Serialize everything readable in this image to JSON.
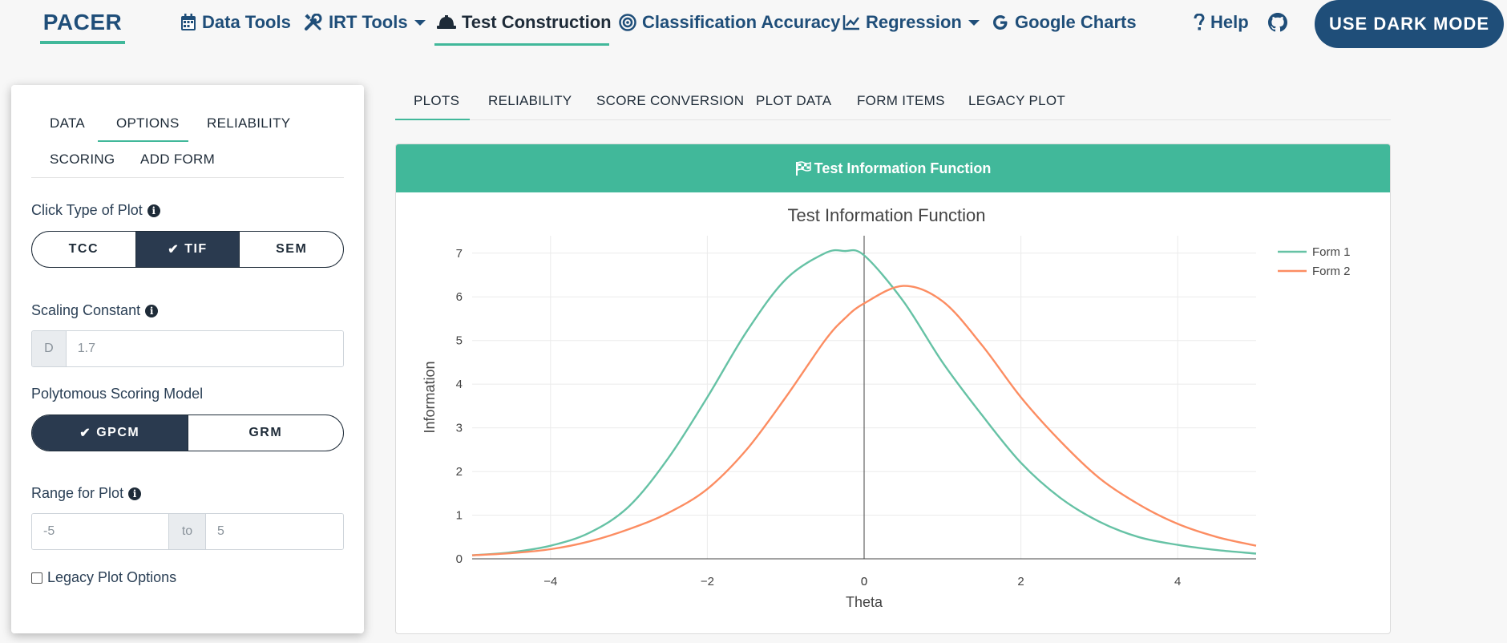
{
  "nav": {
    "brand": "PACER",
    "items": [
      {
        "label": "Data Tools",
        "icon": "calendar-icon"
      },
      {
        "label": "IRT Tools",
        "icon": "tools-icon"
      },
      {
        "label": "Test Construction",
        "icon": "hard-hat-icon"
      },
      {
        "label": "Classification Accuracy",
        "icon": "bullseye-icon"
      },
      {
        "label": "Regression",
        "icon": "line-chart-icon"
      },
      {
        "label": "Google Charts",
        "icon": "google-icon"
      },
      {
        "label": "Help",
        "icon": "question-icon"
      }
    ],
    "github_icon": "github-icon",
    "dark_mode_button": "USE DARK MODE",
    "colors": {
      "brand": "#1f4e79",
      "accent": "#41b89a"
    }
  },
  "sidebar": {
    "tabs": [
      "DATA",
      "OPTIONS",
      "RELIABILITY",
      "SCORING",
      "ADD FORM"
    ],
    "active_tab": "OPTIONS",
    "plot_type": {
      "label": "Click Type of Plot",
      "options": [
        "TCC",
        "TIF",
        "SEM"
      ],
      "selected": "TIF"
    },
    "scaling_constant": {
      "label": "Scaling Constant",
      "addon": "D",
      "value": "1.7"
    },
    "scoring_model": {
      "label": "Polytomous Scoring Model",
      "options": [
        "GPCM",
        "GRM"
      ],
      "selected": "GPCM"
    },
    "range": {
      "label": "Range for Plot",
      "from": "-5",
      "to_label": "to",
      "to": "5"
    },
    "legacy_checkbox": "Legacy Plot Options"
  },
  "main": {
    "tabs": [
      "PLOTS",
      "RELIABILITY",
      "SCORE CONVERSION",
      "PLOT DATA",
      "FORM ITEMS",
      "LEGACY PLOT"
    ],
    "active_tab": "PLOTS",
    "card_title": "Test Information Function"
  },
  "chart_data": {
    "type": "line",
    "title": "Test Information Function",
    "xlabel": "Theta",
    "ylabel": "Information",
    "xlim": [
      -5,
      5
    ],
    "ylim": [
      0,
      7.4
    ],
    "xticks": [
      -4,
      -2,
      0,
      2,
      4
    ],
    "yticks": [
      0,
      1,
      2,
      3,
      4,
      5,
      6,
      7
    ],
    "grid": true,
    "legend_position": "top-right",
    "x": [
      -5,
      -4.5,
      -4,
      -3.5,
      -3,
      -2.5,
      -2,
      -1.5,
      -1,
      -0.5,
      -0.25,
      0,
      0.5,
      1,
      1.5,
      2,
      2.5,
      3,
      3.5,
      4,
      4.5,
      5
    ],
    "series": [
      {
        "name": "Form 1",
        "color": "#66c2a5",
        "values": [
          0.08,
          0.15,
          0.3,
          0.6,
          1.2,
          2.3,
          3.7,
          5.2,
          6.4,
          7.0,
          7.05,
          6.95,
          5.9,
          4.5,
          3.3,
          2.2,
          1.4,
          0.85,
          0.5,
          0.32,
          0.2,
          0.12
        ]
      },
      {
        "name": "Form 2",
        "color": "#fc8d62",
        "values": [
          0.08,
          0.13,
          0.22,
          0.4,
          0.68,
          1.05,
          1.6,
          2.5,
          3.7,
          5.0,
          5.5,
          5.85,
          6.25,
          5.9,
          4.9,
          3.7,
          2.7,
          1.85,
          1.25,
          0.8,
          0.5,
          0.3
        ]
      }
    ]
  }
}
